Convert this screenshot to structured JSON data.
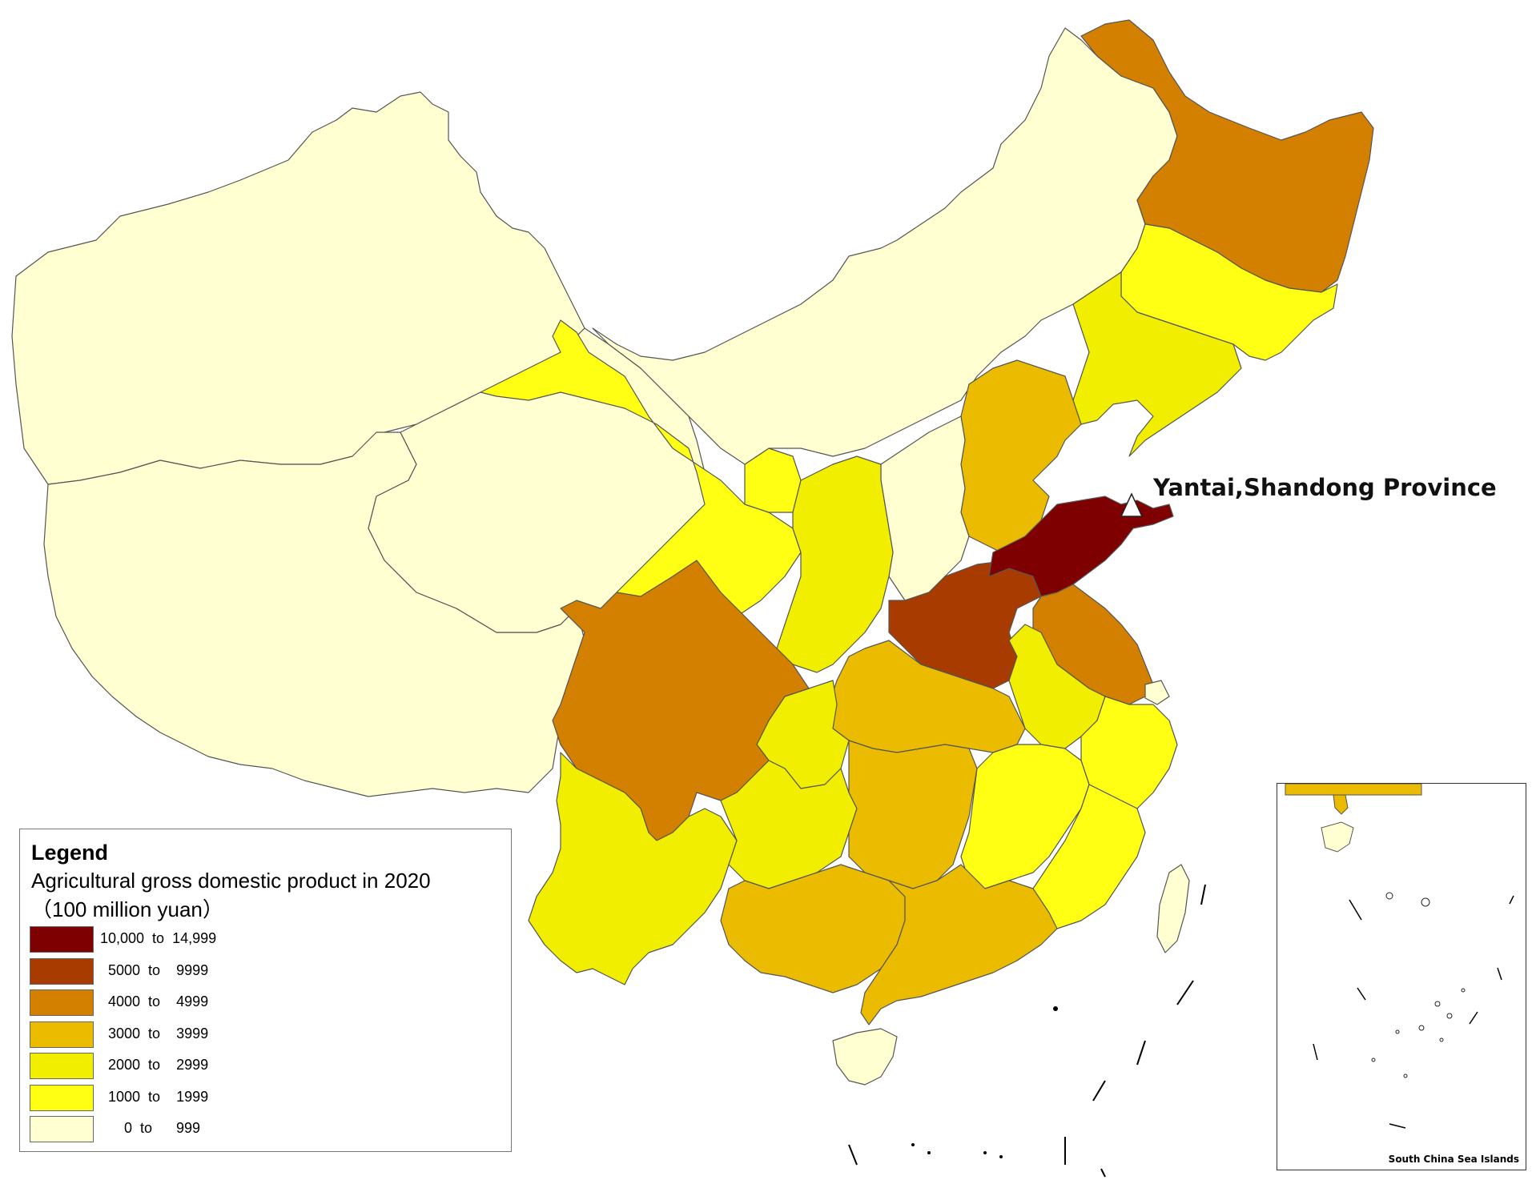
{
  "callout": {
    "label": "Yantai,Shandong Province"
  },
  "legend": {
    "title": "Legend",
    "subtitle": "Agricultural gross domestic product in 2020",
    "unit": "（100 million yuan）",
    "classes": [
      {
        "range": "10,000  to  14,999",
        "color": "#7f0000"
      },
      {
        "range": "  5000  to    9999",
        "color": "#a83c00"
      },
      {
        "range": "  4000  to    4999",
        "color": "#d37f00"
      },
      {
        "range": "  3000  to    3999",
        "color": "#ebbb00"
      },
      {
        "range": "  2000  to    2999",
        "color": "#f2ee00"
      },
      {
        "range": "  1000  to    1999",
        "color": "#ffff14"
      },
      {
        "range": "      0  to      999",
        "color": "#ffffd2"
      }
    ]
  },
  "inset": {
    "label": "South China Sea Islands"
  }
}
